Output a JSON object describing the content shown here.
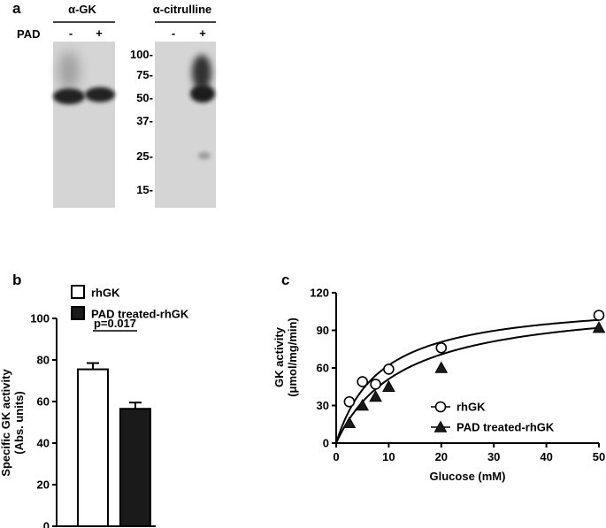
{
  "panel_a": {
    "letter": "a",
    "row_label": "PAD",
    "blots": [
      {
        "title": "α-GK",
        "lanes": [
          "-",
          "+"
        ]
      },
      {
        "title": "α-citrulline",
        "lanes": [
          "-",
          "+"
        ]
      }
    ],
    "markers": [
      100,
      75,
      50,
      37,
      25,
      15
    ],
    "marker_labels": [
      "100-",
      "75-",
      "50-",
      "37-",
      "25-",
      "15-"
    ]
  },
  "colors": {
    "open": "#ffffff",
    "filled": "#1a1a1a",
    "blot_bg": "#d4d4d4",
    "band": "#262626"
  },
  "chart_data": [
    {
      "type": "bar",
      "panel": "b",
      "categories": [
        "rhGK",
        "PAD treated-rhGK"
      ],
      "series": [
        {
          "values": [
            75.5,
            56.5
          ],
          "errors": [
            3,
            3
          ]
        }
      ],
      "ylabel": "Specific GK activity (Abs. units)",
      "ylabel_lines": [
        "Specific GK activity",
        "(Abs. units)"
      ],
      "ylim": [
        0,
        100
      ],
      "yticks": [
        0,
        20,
        40,
        60,
        80,
        100
      ],
      "legend": [
        "rhGK",
        "PAD treated-rhGK"
      ],
      "legend_position": "top-left",
      "annotation": "p=0.017",
      "grid": false
    },
    {
      "type": "scatter",
      "panel": "c",
      "series": [
        {
          "name": "rhGK",
          "marker": "open-circle",
          "x": [
            2.5,
            5,
            7.5,
            10,
            20,
            50
          ],
          "y": [
            33,
            49,
            47,
            59,
            76,
            102
          ]
        },
        {
          "name": "PAD treated-rhGK",
          "marker": "filled-triangle",
          "x": [
            2.5,
            5,
            7.5,
            10,
            20,
            50
          ],
          "y": [
            16,
            30,
            37,
            45,
            60,
            92
          ]
        }
      ],
      "fit_curves": [
        {
          "series": "rhGK",
          "vmax": 115.0,
          "km": 8.5
        },
        {
          "series": "PAD treated-rhGK",
          "vmax": 115.0,
          "km": 12.5
        }
      ],
      "xlabel": "Glucose (mM)",
      "ylabel": "GK activity (μmol/mg/min)",
      "ylabel_lines": [
        "GK activity",
        "(μmol/mg/min)"
      ],
      "xlim": [
        0,
        50
      ],
      "ylim": [
        0,
        120
      ],
      "xticks": [
        0,
        10,
        20,
        30,
        40,
        50
      ],
      "yticks": [
        0,
        30,
        60,
        90,
        120
      ],
      "legend_position": "center-right",
      "grid": false
    }
  ]
}
